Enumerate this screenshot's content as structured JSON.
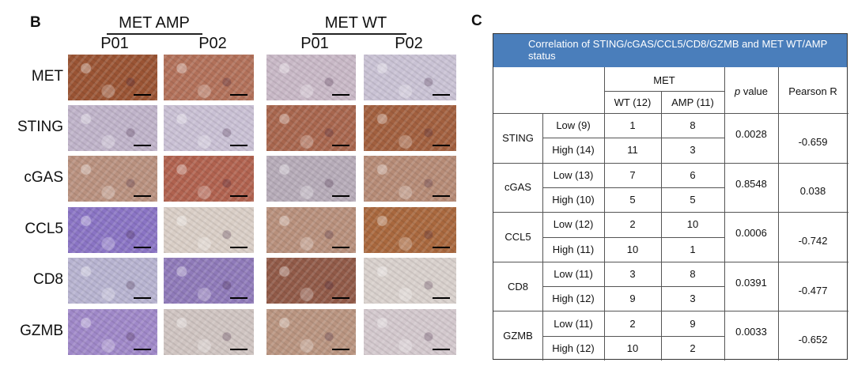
{
  "panel_b": {
    "letter": "B",
    "groups": [
      {
        "title": "MET AMP",
        "patients": [
          "P01",
          "P02"
        ]
      },
      {
        "title": "MET WT",
        "patients": [
          "P01",
          "P02"
        ]
      }
    ],
    "markers": [
      "MET",
      "STING",
      "cGAS",
      "CCL5",
      "CD8",
      "GZMB"
    ],
    "tile_colors": [
      [
        "#9a5434",
        "#b2715a",
        "#c8b8c6",
        "#c9c2d4"
      ],
      [
        "#bfb3c9",
        "#c9c0d4",
        "#a8664e",
        "#a2603f"
      ],
      [
        "#b9917f",
        "#b0624f",
        "#b6abb8",
        "#b68b76"
      ],
      [
        "#8a74c4",
        "#d9cec6",
        "#b8907c",
        "#a9683e"
      ],
      [
        "#b7b3d0",
        "#8f7ab9",
        "#915a48",
        "#d8d0cc"
      ],
      [
        "#9f88c8",
        "#cfc4c1",
        "#b99480",
        "#d3c8cd"
      ]
    ]
  },
  "panel_c": {
    "letter": "C",
    "title": "Correlation of STING/cGAS/CCL5/CD8/GZMB and MET WT/AMP status",
    "header_color": "#4a7ebb",
    "header": {
      "met": "MET",
      "wt": "WT (12)",
      "amp": "AMP (11)",
      "p_italic": "p",
      "p_rest": " value",
      "pearson": "Pearson R"
    },
    "rows": [
      {
        "marker": "STING",
        "low": "Low (9)",
        "low_wt": "1",
        "low_amp": "8",
        "high": "High (14)",
        "high_wt": "11",
        "high_amp": "3",
        "p": "0.0028",
        "r": "-0.659"
      },
      {
        "marker": "cGAS",
        "low": "Low (13)",
        "low_wt": "7",
        "low_amp": "6",
        "high": "High (10)",
        "high_wt": "5",
        "high_amp": "5",
        "p": "0.8548",
        "r": "0.038"
      },
      {
        "marker": "CCL5",
        "low": "Low (12)",
        "low_wt": "2",
        "low_amp": "10",
        "high": "High (11)",
        "high_wt": "10",
        "high_amp": "1",
        "p": "0.0006",
        "r": "-0.742"
      },
      {
        "marker": "CD8",
        "low": "Low (11)",
        "low_wt": "3",
        "low_amp": "8",
        "high": "High (12)",
        "high_wt": "9",
        "high_amp": "3",
        "p": "0.0391",
        "r": "-0.477"
      },
      {
        "marker": "GZMB",
        "low": "Low (11)",
        "low_wt": "2",
        "low_amp": "9",
        "high": "High (12)",
        "high_wt": "10",
        "high_amp": "2",
        "p": "0.0033",
        "r": "-0.652"
      }
    ]
  }
}
